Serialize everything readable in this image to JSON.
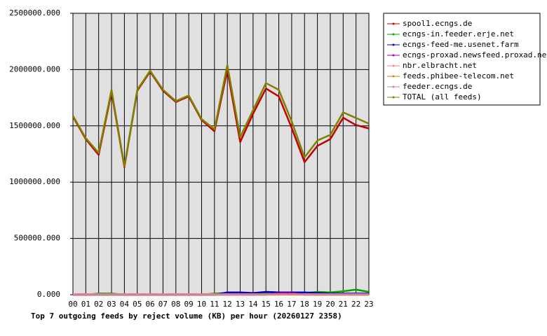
{
  "chart_data": {
    "type": "line",
    "title": "Top 7 outgoing feeds by reject volume (KB) per hour (20260127 2358)",
    "categories": [
      "00",
      "01",
      "02",
      "03",
      "04",
      "05",
      "06",
      "07",
      "08",
      "09",
      "10",
      "11",
      "12",
      "13",
      "14",
      "15",
      "16",
      "17",
      "18",
      "19",
      "20",
      "21",
      "22",
      "23"
    ],
    "ylim": [
      0,
      2500000
    ],
    "yticks": [
      {
        "value": 0,
        "label": "0.000"
      },
      {
        "value": 500000,
        "label": "500000.000"
      },
      {
        "value": 1000000,
        "label": "1000000.000"
      },
      {
        "value": 1500000,
        "label": "1500000.000"
      },
      {
        "value": 2000000,
        "label": "2000000.000"
      },
      {
        "value": 2500000,
        "label": "2500000.000"
      }
    ],
    "grid": true,
    "series": [
      {
        "name": "spool1.ecngs.de",
        "color": "#c00000",
        "values": [
          1582000,
          1382000,
          1242000,
          1802000,
          1132000,
          1812000,
          1982000,
          1812000,
          1712000,
          1762000,
          1552000,
          1452000,
          1997000,
          1357000,
          1607000,
          1832000,
          1762000,
          1482000,
          1177000,
          1322000,
          1382000,
          1572000,
          1507000,
          1477000
        ]
      },
      {
        "name": "ecngs-in.feeder.erje.net",
        "color": "#00a000",
        "values": [
          0,
          0,
          10000,
          10000,
          0,
          0,
          0,
          0,
          0,
          0,
          0,
          10000,
          15000,
          15000,
          10000,
          15000,
          15000,
          15000,
          15000,
          25000,
          20000,
          30000,
          45000,
          25000
        ]
      },
      {
        "name": "ecngs-feed-me.usenet.farm",
        "color": "#0000c0",
        "values": [
          0,
          0,
          0,
          0,
          0,
          0,
          0,
          0,
          0,
          0,
          0,
          0,
          20000,
          20000,
          15000,
          25000,
          20000,
          20000,
          20000,
          15000,
          10000,
          10000,
          10000,
          10000
        ]
      },
      {
        "name": "ecngs-proxad.newsfeed.proxad.net",
        "color": "#a000a0",
        "values": [
          0,
          0,
          0,
          0,
          0,
          0,
          0,
          0,
          0,
          0,
          0,
          0,
          0,
          0,
          0,
          0,
          15000,
          15000,
          0,
          0,
          0,
          0,
          0,
          0
        ]
      },
      {
        "name": "nbr.elbracht.net",
        "color": "#ff8080",
        "values": [
          5000,
          5000,
          5000,
          5000,
          5000,
          5000,
          5000,
          5000,
          5000,
          5000,
          5000,
          5000,
          5000,
          5000,
          5000,
          5000,
          5000,
          5000,
          5000,
          5000,
          5000,
          5000,
          5000,
          5000
        ]
      },
      {
        "name": "feeds.phibee-telecom.net",
        "color": "#e08000",
        "values": [
          0,
          0,
          0,
          0,
          0,
          0,
          0,
          0,
          0,
          0,
          0,
          0,
          0,
          0,
          0,
          0,
          0,
          0,
          0,
          0,
          0,
          0,
          0,
          0
        ]
      },
      {
        "name": "feeder.ecngs.de",
        "color": "#d080a0",
        "values": [
          3000,
          3000,
          3000,
          3000,
          3000,
          3000,
          3000,
          3000,
          3000,
          3000,
          3000,
          3000,
          3000,
          3000,
          3000,
          3000,
          3000,
          3000,
          3000,
          3000,
          3000,
          3000,
          3000,
          3000
        ]
      },
      {
        "name": "TOTAL (all feeds)",
        "color": "#808000",
        "values": [
          1590000,
          1390000,
          1260000,
          1820000,
          1140000,
          1820000,
          1990000,
          1820000,
          1720000,
          1770000,
          1560000,
          1470000,
          2040000,
          1400000,
          1640000,
          1880000,
          1820000,
          1540000,
          1220000,
          1370000,
          1420000,
          1620000,
          1570000,
          1520000
        ]
      }
    ]
  }
}
